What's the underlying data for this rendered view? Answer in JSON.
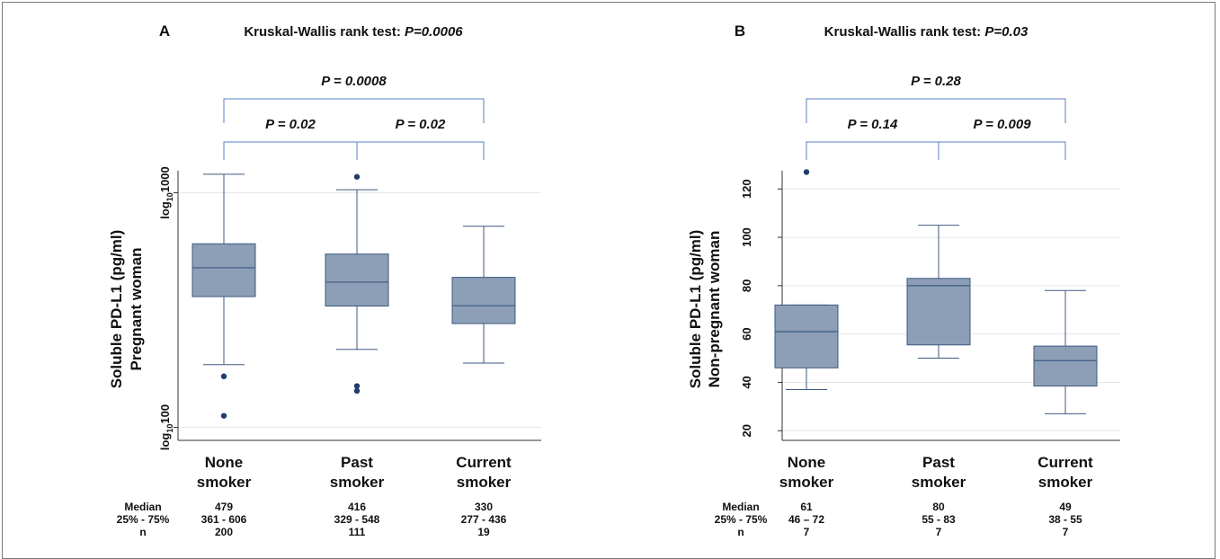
{
  "colors": {
    "box_fill": "#8c9fb6",
    "box_stroke": "#3d5a80",
    "bracket": "#5b7fc4",
    "point": "#1f3e6b",
    "grid": "#e6e6e6"
  },
  "chart_data": [
    {
      "type": "box",
      "panel_letter": "A",
      "title_prefix": "Kruskal-Wallis rank test: ",
      "title_p": "P=0.0006",
      "ylabel_line1": "Soluble PD-L1 (pg/ml)",
      "ylabel_line2": "Pregnant woman",
      "yscale": "log",
      "ylim": [
        88,
        1380
      ],
      "yticks": [
        {
          "value": 100,
          "prefix": "log",
          "sub": "10",
          "suffix": "100"
        },
        {
          "value": 1000,
          "prefix": "log",
          "sub": "10",
          "suffix": "1000"
        }
      ],
      "grid": true,
      "categories": [
        {
          "line1": "None",
          "line2": "smoker"
        },
        {
          "line1": "Past",
          "line2": "smoker"
        },
        {
          "line1": "Current",
          "line2": "smoker"
        }
      ],
      "boxes": [
        {
          "whisker_low": 185,
          "q1": 361,
          "median": 479,
          "q3": 606,
          "whisker_high": 1200,
          "outliers": [
            165,
            112
          ]
        },
        {
          "whisker_low": 215,
          "q1": 329,
          "median": 416,
          "q3": 548,
          "whisker_high": 1030,
          "outliers": [
            1170,
            150,
            143
          ]
        },
        {
          "whisker_low": 188,
          "q1": 277,
          "median": 330,
          "q3": 436,
          "whisker_high": 720,
          "outliers": []
        }
      ],
      "comparisons": [
        {
          "from": 0,
          "to": 1,
          "level": 1,
          "label": "P = 0.02"
        },
        {
          "from": 1,
          "to": 2,
          "level": 1,
          "label": "P = 0.02"
        },
        {
          "from": 0,
          "to": 2,
          "level": 2,
          "label": "P = 0.0008"
        }
      ],
      "stats_labels": [
        "Median",
        "25% - 75%",
        "n"
      ],
      "stats": [
        [
          "479",
          "361 -  606",
          "200"
        ],
        [
          "416",
          "329 - 548",
          "111"
        ],
        [
          "330",
          "277 - 436",
          "19"
        ]
      ]
    },
    {
      "type": "box",
      "panel_letter": "B",
      "title_prefix": "Kruskal-Wallis rank test: ",
      "title_p": "P=0.03",
      "ylabel_line1": "Soluble PD-L1 (pg/ml)",
      "ylabel_line2": "Non-pregnant woman",
      "yscale": "linear",
      "ylim": [
        16,
        132
      ],
      "yticks": [
        {
          "value": 20,
          "prefix": "",
          "sub": "",
          "suffix": "20"
        },
        {
          "value": 40,
          "prefix": "",
          "sub": "",
          "suffix": "40"
        },
        {
          "value": 60,
          "prefix": "",
          "sub": "",
          "suffix": "60"
        },
        {
          "value": 80,
          "prefix": "",
          "sub": "",
          "suffix": "80"
        },
        {
          "value": 100,
          "prefix": "",
          "sub": "",
          "suffix": "100"
        },
        {
          "value": 120,
          "prefix": "",
          "sub": "",
          "suffix": "120"
        }
      ],
      "grid": true,
      "categories": [
        {
          "line1": "None",
          "line2": "smoker"
        },
        {
          "line1": "Past",
          "line2": "smoker"
        },
        {
          "line1": "Current",
          "line2": "smoker"
        }
      ],
      "boxes": [
        {
          "whisker_low": 37,
          "q1": 46,
          "median": 61,
          "q3": 72,
          "whisker_high": 72,
          "outliers": [
            127
          ]
        },
        {
          "whisker_low": 50,
          "q1": 55.5,
          "median": 80,
          "q3": 83,
          "whisker_high": 105,
          "outliers": []
        },
        {
          "whisker_low": 27,
          "q1": 38.5,
          "median": 49,
          "q3": 55,
          "whisker_high": 78,
          "outliers": []
        }
      ],
      "comparisons": [
        {
          "from": 0,
          "to": 1,
          "level": 1,
          "label": "P = 0.14"
        },
        {
          "from": 1,
          "to": 2,
          "level": 1,
          "label": "P = 0.009"
        },
        {
          "from": 0,
          "to": 2,
          "level": 2,
          "label": "P = 0.28"
        }
      ],
      "stats_labels": [
        "Median",
        "25% - 75%",
        "n"
      ],
      "stats": [
        [
          "61",
          "46 – 72",
          "7"
        ],
        [
          "80",
          "55 - 83",
          "7"
        ],
        [
          "49",
          "38 - 55",
          "7"
        ]
      ]
    }
  ]
}
